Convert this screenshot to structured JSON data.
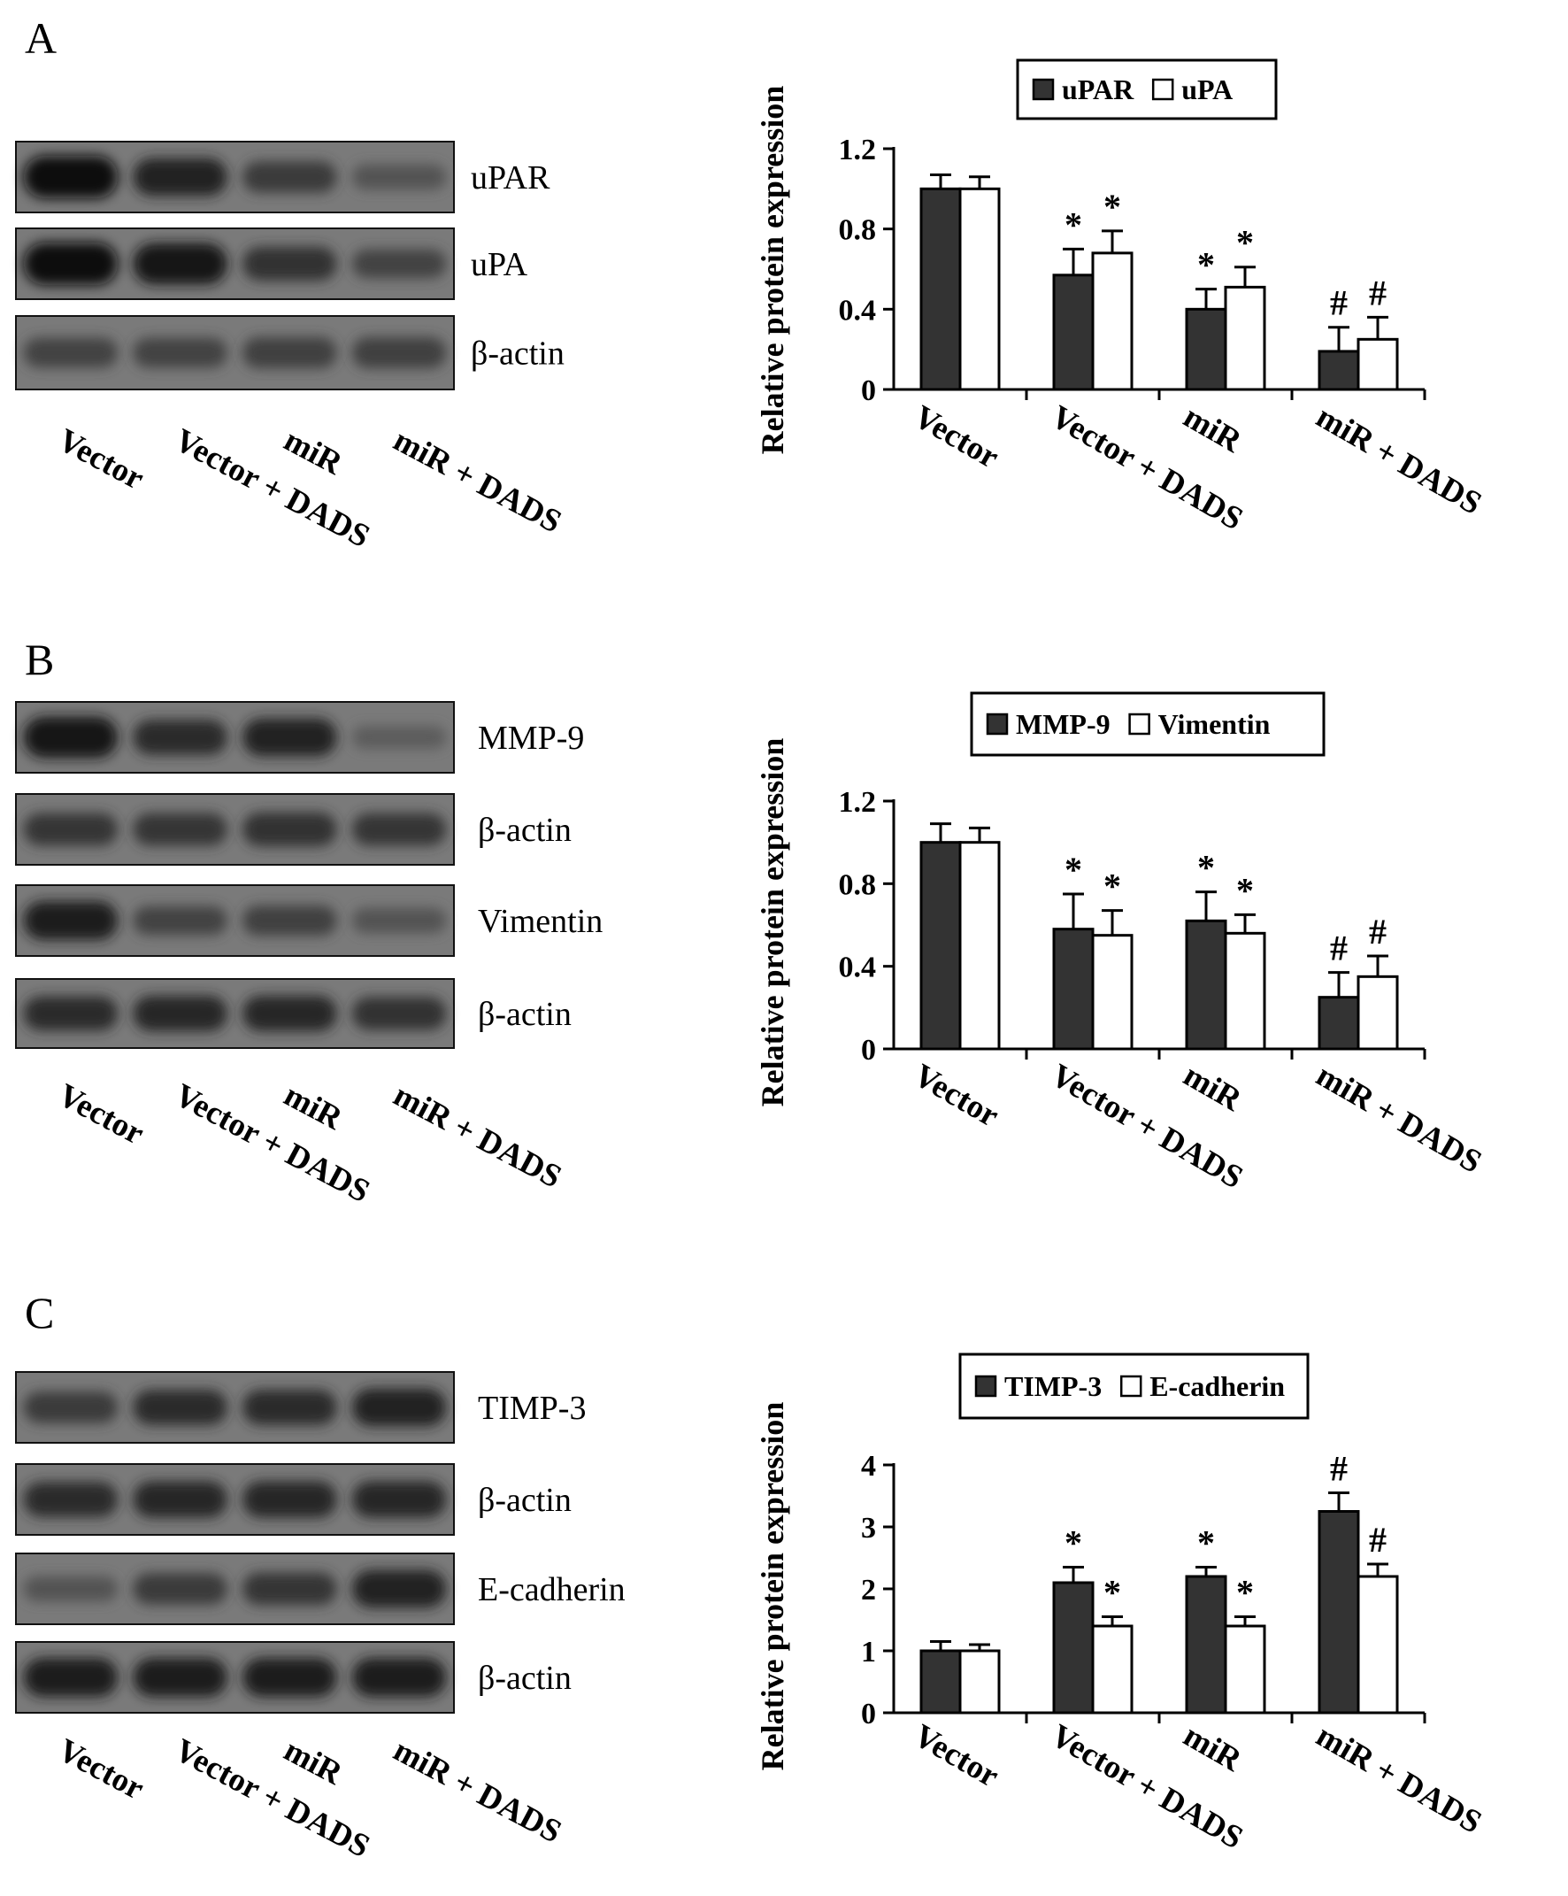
{
  "panels": [
    {
      "letter": "A",
      "blots": [
        {
          "label": "uPAR",
          "bands": [
            1.0,
            0.8,
            0.55,
            0.3
          ]
        },
        {
          "label": "uPA",
          "bands": [
            1.0,
            0.95,
            0.65,
            0.45
          ]
        },
        {
          "label": "β-actin",
          "bands": [
            0.45,
            0.45,
            0.5,
            0.5
          ]
        }
      ],
      "lanes": [
        "Vector",
        "Vector + DADS",
        "miR",
        "miR + DADS"
      ]
    },
    {
      "letter": "B",
      "blots": [
        {
          "label": "MMP-9",
          "bands": [
            0.95,
            0.7,
            0.8,
            0.2
          ]
        },
        {
          "label": "β-actin",
          "bands": [
            0.6,
            0.6,
            0.65,
            0.6
          ]
        },
        {
          "label": "Vimentin",
          "bands": [
            0.85,
            0.45,
            0.5,
            0.3
          ]
        },
        {
          "label": "β-actin",
          "bands": [
            0.7,
            0.75,
            0.75,
            0.65
          ]
        }
      ],
      "lanes": [
        "Vector",
        "Vector + DADS",
        "miR",
        "miR + DADS"
      ]
    },
    {
      "letter": "C",
      "blots": [
        {
          "label": "TIMP-3",
          "bands": [
            0.55,
            0.7,
            0.7,
            0.8
          ]
        },
        {
          "label": "β-actin",
          "bands": [
            0.7,
            0.75,
            0.75,
            0.75
          ]
        },
        {
          "label": "E-cadherin",
          "bands": [
            0.3,
            0.55,
            0.6,
            0.8
          ]
        },
        {
          "label": "β-actin",
          "bands": [
            0.85,
            0.85,
            0.85,
            0.85
          ]
        }
      ],
      "lanes": [
        "Vector",
        "Vector + DADS",
        "miR",
        "miR + DADS"
      ]
    }
  ],
  "chart_data": [
    {
      "type": "bar",
      "title": "",
      "xlabel": "",
      "ylabel": "Relative protein expression",
      "categories": [
        "Vector",
        "Vector + DADS",
        "miR",
        "miR + DADS"
      ],
      "ylim": [
        0,
        1.2
      ],
      "yticks": [
        0,
        0.4,
        0.8,
        1.2
      ],
      "ytick_labels": [
        "0",
        "0.4",
        "0.8",
        "1.2"
      ],
      "legend_position": "top",
      "series": [
        {
          "name": "uPAR",
          "color": "#333333",
          "values": [
            1.0,
            0.57,
            0.4,
            0.19
          ],
          "errors": [
            0.07,
            0.13,
            0.1,
            0.12
          ],
          "marks": [
            "",
            "*",
            "*",
            "#"
          ]
        },
        {
          "name": "uPA",
          "color": "#ffffff",
          "values": [
            1.0,
            0.68,
            0.51,
            0.25
          ],
          "errors": [
            0.06,
            0.11,
            0.1,
            0.11
          ],
          "marks": [
            "",
            "*",
            "*",
            "#"
          ]
        }
      ]
    },
    {
      "type": "bar",
      "title": "",
      "xlabel": "",
      "ylabel": "Relative protein expression",
      "categories": [
        "Vector",
        "Vector + DADS",
        "miR",
        "miR + DADS"
      ],
      "ylim": [
        0,
        1.2
      ],
      "yticks": [
        0,
        0.4,
        0.8,
        1.2
      ],
      "ytick_labels": [
        "0",
        "0.4",
        "0.8",
        "1.2"
      ],
      "legend_position": "top",
      "series": [
        {
          "name": "MMP-9",
          "color": "#333333",
          "values": [
            1.0,
            0.58,
            0.62,
            0.25
          ],
          "errors": [
            0.09,
            0.17,
            0.14,
            0.12
          ],
          "marks": [
            "",
            "*",
            "*",
            "#"
          ]
        },
        {
          "name": "Vimentin",
          "color": "#ffffff",
          "values": [
            1.0,
            0.55,
            0.56,
            0.35
          ],
          "errors": [
            0.07,
            0.12,
            0.09,
            0.1
          ],
          "marks": [
            "",
            "*",
            "*",
            "#"
          ]
        }
      ]
    },
    {
      "type": "bar",
      "title": "",
      "xlabel": "",
      "ylabel": "Relative protein expression",
      "categories": [
        "Vector",
        "Vector + DADS",
        "miR",
        "miR + DADS"
      ],
      "ylim": [
        0,
        4
      ],
      "yticks": [
        0,
        1,
        2,
        3,
        4
      ],
      "ytick_labels": [
        "0",
        "1",
        "2",
        "3",
        "4"
      ],
      "legend_position": "top",
      "series": [
        {
          "name": "TIMP-3",
          "color": "#333333",
          "values": [
            1.0,
            2.1,
            2.2,
            3.25
          ],
          "errors": [
            0.15,
            0.25,
            0.15,
            0.3
          ],
          "marks": [
            "",
            "*",
            "*",
            "#"
          ]
        },
        {
          "name": "E-cadherin",
          "color": "#ffffff",
          "values": [
            1.0,
            1.4,
            1.4,
            2.2
          ],
          "errors": [
            0.1,
            0.15,
            0.15,
            0.2
          ],
          "marks": [
            "",
            "*",
            "*",
            "#"
          ]
        }
      ]
    }
  ]
}
